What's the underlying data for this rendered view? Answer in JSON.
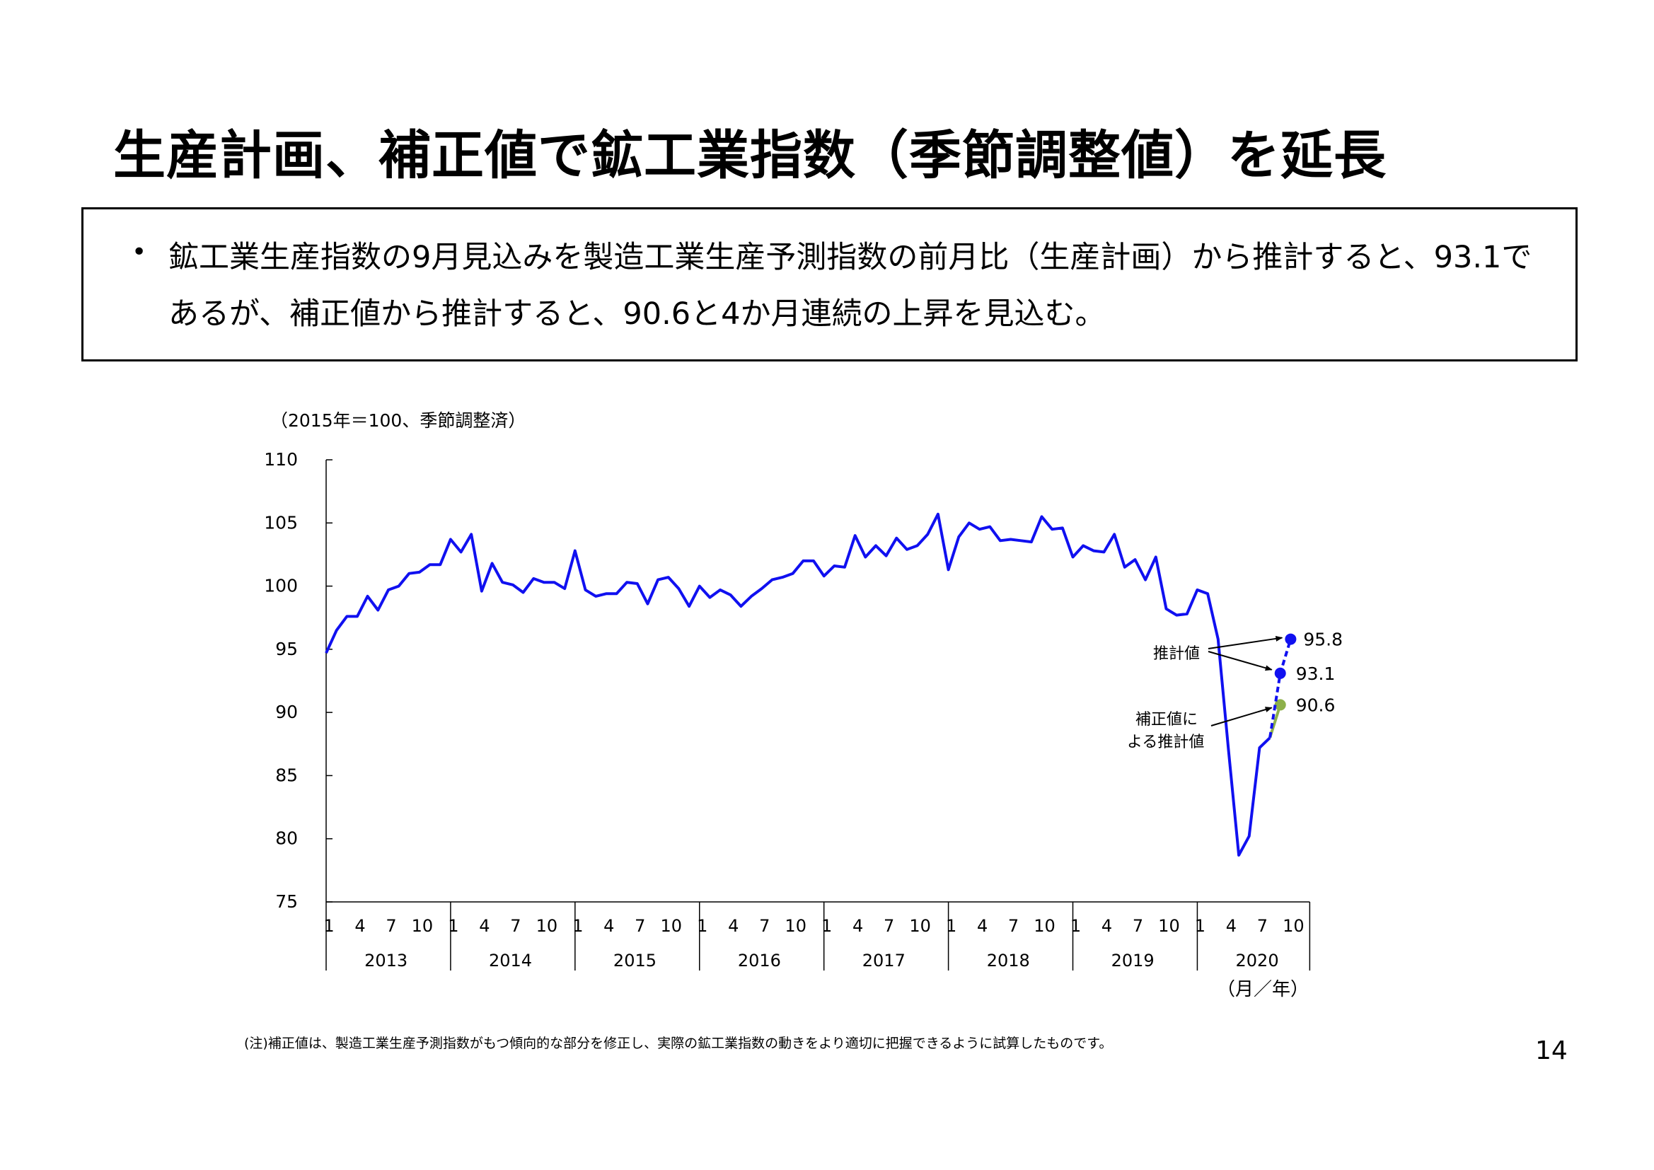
{
  "slide": {
    "title": "生産計画、補正値で鉱工業指数（季節調整値）を延長",
    "bullet": "鉱工業生産指数の9月見込みを製造工業生産予測指数の前月比（生産計画）から推計すると、93.1であるが、補正値から推計すると、90.6と4か月連続の上昇を見込む。",
    "note": "(注)補正値は、製造工業生産予測指数がもつ傾向的な部分を修正し、実際の鉱工業指数の動きをより適切に把握できるように試算したものです。",
    "page_number": "14"
  },
  "chart_data": {
    "type": "line",
    "unit_label": "（2015年＝100、季節調整済）",
    "x_axis_label": "（月／年）",
    "ylim": [
      75,
      110
    ],
    "y_ticks": [
      75,
      80,
      85,
      90,
      95,
      100,
      105,
      110
    ],
    "x_month_ticks": [
      "1",
      "4",
      "7",
      "10"
    ],
    "years": [
      "2013",
      "2014",
      "2015",
      "2016",
      "2017",
      "2018",
      "2019",
      "2020"
    ],
    "colors": {
      "actual": "#1010f0",
      "estimate": "#1010f0",
      "corrected": "#8db04a"
    },
    "series": [
      {
        "start": "2013-01",
        "values": [
          94.7,
          96.5,
          97.6,
          97.6,
          99.2,
          98.1,
          99.7,
          100.0,
          101.0,
          101.1,
          101.7,
          101.7,
          103.7,
          102.7,
          104.1,
          99.6,
          101.8,
          100.3,
          100.1,
          99.5,
          100.6,
          100.3,
          100.3,
          99.8,
          102.8,
          99.7,
          99.2,
          99.4,
          99.4,
          100.3,
          100.2,
          98.6,
          100.5,
          100.7,
          99.8,
          98.4,
          100.0,
          99.1,
          99.7,
          99.3,
          98.4,
          99.2,
          99.8,
          100.5,
          100.7,
          101.0,
          102.0,
          102.0,
          100.8,
          101.6,
          101.5,
          104.0,
          102.3,
          103.2,
          102.4,
          103.8,
          102.9,
          103.2,
          104.1,
          105.7,
          101.3,
          103.9,
          105.0,
          104.5,
          104.7,
          103.6,
          103.7,
          103.6,
          103.5,
          105.5,
          104.5,
          104.6,
          102.3,
          103.2,
          102.8,
          102.7,
          104.1,
          101.5,
          102.1,
          100.5,
          102.3,
          98.2,
          97.7,
          97.8,
          99.7,
          99.4,
          95.8,
          87.1,
          78.7,
          80.2,
          87.2,
          88.0
        ]
      },
      {
        "name": "推計値",
        "points": [
          [
            "2020-08",
            88.0
          ],
          [
            "2020-09",
            93.1
          ],
          [
            "2020-10",
            95.8
          ]
        ],
        "labels": [
          "93.1",
          "95.8"
        ]
      },
      {
        "name": "補正値による推計値",
        "points": [
          [
            "2020-08",
            88.0
          ],
          [
            "2020-09",
            90.6
          ]
        ],
        "labels": [
          "90.6"
        ]
      }
    ],
    "annotations": {
      "estimate": "推計値",
      "corrected_line1": "補正値に",
      "corrected_line2": "よる推計値"
    }
  }
}
